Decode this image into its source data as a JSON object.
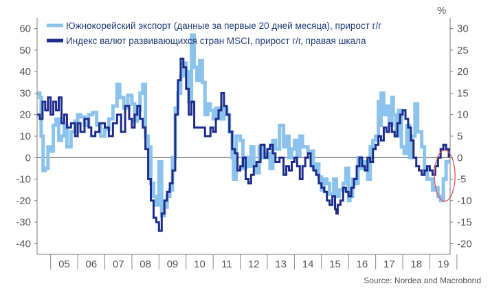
{
  "chart_data": {
    "type": "line",
    "title": "",
    "unit_label": "%",
    "source": "Source: Nordea and Macrobond",
    "legend_position": "top-left",
    "x_categories": [
      "05",
      "06",
      "07",
      "08",
      "09",
      "10",
      "11",
      "12",
      "13",
      "14",
      "15",
      "16",
      "17",
      "18",
      "19"
    ],
    "x_range": [
      2004.5,
      2019.75
    ],
    "left_axis": {
      "ylim": [
        -45,
        65
      ],
      "ticks": [
        60,
        50,
        40,
        30,
        20,
        10,
        0,
        -10,
        -20,
        -30,
        -40
      ]
    },
    "right_axis": {
      "ylim": [
        -22.5,
        32.5
      ],
      "ticks": [
        30,
        25,
        20,
        15,
        10,
        5,
        0,
        -5,
        -10,
        -15,
        -20
      ]
    },
    "zero_line": true,
    "highlight": {
      "shape": "ellipse",
      "color": "#e05050",
      "x": 2019.5,
      "y_left": -10
    },
    "series": [
      {
        "name": "Южнокорейский экспорт (данные за первые 20 дней месяца), прирост г/г",
        "axis": "left",
        "color": "#8cc3ec",
        "points": [
          [
            2004.5,
            30
          ],
          [
            2004.6,
            28
          ],
          [
            2004.65,
            10
          ],
          [
            2004.72,
            -6
          ],
          [
            2004.8,
            -5
          ],
          [
            2004.9,
            5
          ],
          [
            2005.0,
            3
          ],
          [
            2005.1,
            15
          ],
          [
            2005.2,
            18
          ],
          [
            2005.3,
            8
          ],
          [
            2005.4,
            10
          ],
          [
            2005.5,
            15
          ],
          [
            2005.6,
            5
          ],
          [
            2005.75,
            12
          ],
          [
            2005.9,
            17
          ],
          [
            2006.0,
            20
          ],
          [
            2006.1,
            19
          ],
          [
            2006.25,
            15
          ],
          [
            2006.4,
            20
          ],
          [
            2006.55,
            21
          ],
          [
            2006.7,
            15
          ],
          [
            2006.85,
            10
          ],
          [
            2007.0,
            13
          ],
          [
            2007.15,
            18
          ],
          [
            2007.3,
            24
          ],
          [
            2007.45,
            34
          ],
          [
            2007.55,
            28
          ],
          [
            2007.7,
            23
          ],
          [
            2007.85,
            29
          ],
          [
            2008.0,
            25
          ],
          [
            2008.1,
            17
          ],
          [
            2008.2,
            22
          ],
          [
            2008.3,
            30
          ],
          [
            2008.4,
            34
          ],
          [
            2008.5,
            10
          ],
          [
            2008.6,
            5
          ],
          [
            2008.7,
            -12
          ],
          [
            2008.8,
            -18
          ],
          [
            2008.9,
            -22
          ],
          [
            2009.0,
            -2
          ],
          [
            2009.1,
            -27
          ],
          [
            2009.2,
            -23
          ],
          [
            2009.3,
            -18
          ],
          [
            2009.4,
            -15
          ],
          [
            2009.5,
            0
          ],
          [
            2009.6,
            23
          ],
          [
            2009.7,
            30
          ],
          [
            2009.8,
            38
          ],
          [
            2009.9,
            44
          ],
          [
            2010.0,
            40
          ],
          [
            2010.1,
            26
          ],
          [
            2010.2,
            57
          ],
          [
            2010.3,
            42
          ],
          [
            2010.4,
            36
          ],
          [
            2010.5,
            45
          ],
          [
            2010.6,
            35
          ],
          [
            2010.7,
            20
          ],
          [
            2010.8,
            25
          ],
          [
            2010.9,
            22
          ],
          [
            2011.0,
            18
          ],
          [
            2011.1,
            23
          ],
          [
            2011.2,
            22
          ],
          [
            2011.3,
            18
          ],
          [
            2011.4,
            23
          ],
          [
            2011.5,
            20
          ],
          [
            2011.6,
            12
          ],
          [
            2011.7,
            0
          ],
          [
            2011.75,
            -10
          ],
          [
            2011.85,
            10
          ],
          [
            2012.0,
            8
          ],
          [
            2012.1,
            -5
          ],
          [
            2012.2,
            0
          ],
          [
            2012.3,
            -4
          ],
          [
            2012.4,
            5
          ],
          [
            2012.5,
            -3
          ],
          [
            2012.6,
            -7
          ],
          [
            2012.7,
            5
          ],
          [
            2012.8,
            0
          ],
          [
            2013.0,
            2
          ],
          [
            2013.1,
            -5
          ],
          [
            2013.2,
            8
          ],
          [
            2013.3,
            4
          ],
          [
            2013.45,
            15
          ],
          [
            2013.6,
            5
          ],
          [
            2013.7,
            10
          ],
          [
            2013.8,
            0
          ],
          [
            2013.9,
            4
          ],
          [
            2014.0,
            8
          ],
          [
            2014.1,
            1
          ],
          [
            2014.2,
            10
          ],
          [
            2014.3,
            5
          ],
          [
            2014.5,
            3
          ],
          [
            2014.7,
            -5
          ],
          [
            2014.8,
            -3
          ],
          [
            2014.9,
            -9
          ],
          [
            2015.0,
            -15
          ],
          [
            2015.1,
            -10
          ],
          [
            2015.2,
            -12
          ],
          [
            2015.3,
            -17
          ],
          [
            2015.45,
            -10
          ],
          [
            2015.55,
            -18
          ],
          [
            2015.65,
            -15
          ],
          [
            2015.8,
            -12
          ],
          [
            2015.9,
            -5
          ],
          [
            2016.0,
            -20
          ],
          [
            2016.05,
            -18
          ],
          [
            2016.15,
            -10
          ],
          [
            2016.25,
            -12
          ],
          [
            2016.35,
            0
          ],
          [
            2016.45,
            -5
          ],
          [
            2016.6,
            -2
          ],
          [
            2016.7,
            -10
          ],
          [
            2016.8,
            5
          ],
          [
            2016.9,
            8
          ],
          [
            2017.0,
            10
          ],
          [
            2017.1,
            26
          ],
          [
            2017.15,
            15
          ],
          [
            2017.2,
            30
          ],
          [
            2017.3,
            20
          ],
          [
            2017.4,
            24
          ],
          [
            2017.5,
            15
          ],
          [
            2017.6,
            28
          ],
          [
            2017.65,
            20
          ],
          [
            2017.75,
            10
          ],
          [
            2017.85,
            22
          ],
          [
            2017.95,
            5
          ],
          [
            2018.05,
            2
          ],
          [
            2018.15,
            15
          ],
          [
            2018.25,
            0
          ],
          [
            2018.35,
            10
          ],
          [
            2018.45,
            25
          ],
          [
            2018.55,
            12
          ],
          [
            2018.7,
            5
          ],
          [
            2018.8,
            -5
          ],
          [
            2018.9,
            -10
          ],
          [
            2019.0,
            -10
          ],
          [
            2019.1,
            -15
          ],
          [
            2019.2,
            -14
          ],
          [
            2019.3,
            -18
          ],
          [
            2019.4,
            -20
          ],
          [
            2019.5,
            -10
          ],
          [
            2019.6,
            -2
          ],
          [
            2019.7,
            -1
          ]
        ]
      },
      {
        "name": "Индекс валют развивающихся стран MSCI, прирост г/г, правая шкала",
        "axis": "right",
        "color": "#1c2c8c",
        "points": [
          [
            2004.5,
            10
          ],
          [
            2004.6,
            9
          ],
          [
            2004.7,
            13
          ],
          [
            2004.8,
            11
          ],
          [
            2004.9,
            14
          ],
          [
            2005.0,
            10
          ],
          [
            2005.1,
            13
          ],
          [
            2005.2,
            11
          ],
          [
            2005.3,
            14
          ],
          [
            2005.4,
            8
          ],
          [
            2005.5,
            10
          ],
          [
            2005.6,
            7
          ],
          [
            2005.75,
            8
          ],
          [
            2005.9,
            5
          ],
          [
            2006.0,
            8
          ],
          [
            2006.1,
            6
          ],
          [
            2006.25,
            9
          ],
          [
            2006.4,
            7
          ],
          [
            2006.5,
            5
          ],
          [
            2006.65,
            6
          ],
          [
            2006.8,
            8
          ],
          [
            2007.0,
            7
          ],
          [
            2007.15,
            5
          ],
          [
            2007.3,
            8
          ],
          [
            2007.45,
            10
          ],
          [
            2007.6,
            6
          ],
          [
            2007.75,
            12
          ],
          [
            2007.9,
            9
          ],
          [
            2008.0,
            7
          ],
          [
            2008.1,
            10
          ],
          [
            2008.2,
            12
          ],
          [
            2008.3,
            9
          ],
          [
            2008.4,
            7
          ],
          [
            2008.5,
            2
          ],
          [
            2008.6,
            -5
          ],
          [
            2008.7,
            -10
          ],
          [
            2008.8,
            -14
          ],
          [
            2008.9,
            -15
          ],
          [
            2009.0,
            -17
          ],
          [
            2009.1,
            -13
          ],
          [
            2009.2,
            -10
          ],
          [
            2009.3,
            -8
          ],
          [
            2009.4,
            -6
          ],
          [
            2009.5,
            -3
          ],
          [
            2009.6,
            10
          ],
          [
            2009.7,
            18
          ],
          [
            2009.8,
            23
          ],
          [
            2009.9,
            21
          ],
          [
            2010.0,
            16
          ],
          [
            2010.1,
            10
          ],
          [
            2010.2,
            13
          ],
          [
            2010.3,
            7
          ],
          [
            2010.5,
            7
          ],
          [
            2010.7,
            5
          ],
          [
            2010.9,
            7
          ],
          [
            2011.0,
            6
          ],
          [
            2011.1,
            9
          ],
          [
            2011.2,
            11
          ],
          [
            2011.3,
            15
          ],
          [
            2011.4,
            12
          ],
          [
            2011.5,
            10
          ],
          [
            2011.6,
            6
          ],
          [
            2011.7,
            2
          ],
          [
            2011.8,
            1
          ],
          [
            2011.9,
            -3
          ],
          [
            2012.0,
            -2
          ],
          [
            2012.1,
            0
          ],
          [
            2012.2,
            -5
          ],
          [
            2012.3,
            -6
          ],
          [
            2012.4,
            -4
          ],
          [
            2012.5,
            -2
          ],
          [
            2012.6,
            -1
          ],
          [
            2012.75,
            3
          ],
          [
            2012.9,
            0
          ],
          [
            2013.0,
            2
          ],
          [
            2013.1,
            3
          ],
          [
            2013.2,
            1
          ],
          [
            2013.3,
            -1
          ],
          [
            2013.45,
            0
          ],
          [
            2013.6,
            -4
          ],
          [
            2013.7,
            -2
          ],
          [
            2013.8,
            -3
          ],
          [
            2013.9,
            -1
          ],
          [
            2014.0,
            0
          ],
          [
            2014.1,
            -2
          ],
          [
            2014.2,
            -5
          ],
          [
            2014.3,
            -2
          ],
          [
            2014.4,
            0
          ],
          [
            2014.5,
            1
          ],
          [
            2014.6,
            -2
          ],
          [
            2014.7,
            -3
          ],
          [
            2014.8,
            -4
          ],
          [
            2014.9,
            -6
          ],
          [
            2015.0,
            -7
          ],
          [
            2015.1,
            -8
          ],
          [
            2015.2,
            -10
          ],
          [
            2015.3,
            -11
          ],
          [
            2015.4,
            -9
          ],
          [
            2015.5,
            -12
          ],
          [
            2015.55,
            -13
          ],
          [
            2015.6,
            -11
          ],
          [
            2015.7,
            -10
          ],
          [
            2015.8,
            -7
          ],
          [
            2015.9,
            -8
          ],
          [
            2016.0,
            -9
          ],
          [
            2016.1,
            -7
          ],
          [
            2016.2,
            -5
          ],
          [
            2016.3,
            -2
          ],
          [
            2016.4,
            0
          ],
          [
            2016.5,
            -2
          ],
          [
            2016.6,
            -3
          ],
          [
            2016.7,
            0
          ],
          [
            2016.8,
            -1
          ],
          [
            2016.9,
            2
          ],
          [
            2017.0,
            3
          ],
          [
            2017.1,
            5
          ],
          [
            2017.2,
            4
          ],
          [
            2017.3,
            7
          ],
          [
            2017.4,
            6
          ],
          [
            2017.5,
            8
          ],
          [
            2017.6,
            6
          ],
          [
            2017.7,
            5
          ],
          [
            2017.8,
            8
          ],
          [
            2017.9,
            10
          ],
          [
            2018.0,
            11
          ],
          [
            2018.1,
            9
          ],
          [
            2018.2,
            7
          ],
          [
            2018.3,
            4
          ],
          [
            2018.4,
            0
          ],
          [
            2018.5,
            -2
          ],
          [
            2018.6,
            -3
          ],
          [
            2018.7,
            -4
          ],
          [
            2018.8,
            -3
          ],
          [
            2018.9,
            -2
          ],
          [
            2019.0,
            -3
          ],
          [
            2019.1,
            -4
          ],
          [
            2019.2,
            -2
          ],
          [
            2019.3,
            0
          ],
          [
            2019.4,
            2
          ],
          [
            2019.5,
            3
          ],
          [
            2019.6,
            2
          ],
          [
            2019.7,
            0
          ]
        ]
      }
    ]
  }
}
